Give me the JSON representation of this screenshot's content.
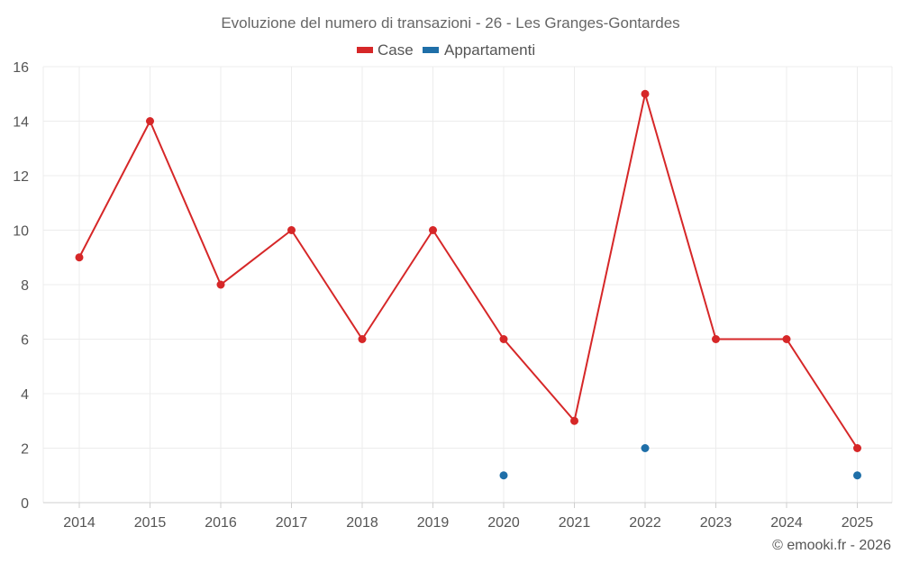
{
  "chart_data": {
    "type": "line",
    "title": "Evoluzione del numero di transazioni - 26 - Les Granges-Gontardes",
    "categories": [
      "2014",
      "2015",
      "2016",
      "2017",
      "2018",
      "2019",
      "2020",
      "2021",
      "2022",
      "2023",
      "2024",
      "2025"
    ],
    "series": [
      {
        "name": "Case",
        "color": "#d62728",
        "values": [
          9,
          14,
          8,
          10,
          6,
          10,
          6,
          3,
          15,
          6,
          6,
          2
        ]
      },
      {
        "name": "Appartamenti",
        "color": "#1f6fa8",
        "values": [
          null,
          null,
          null,
          null,
          null,
          null,
          1,
          null,
          2,
          null,
          null,
          1
        ]
      }
    ],
    "ylim": [
      0,
      16
    ],
    "yticks": [
      "0",
      "2",
      "4",
      "6",
      "8",
      "10",
      "12",
      "14",
      "16"
    ],
    "xlabel": "",
    "ylabel": "",
    "grid": true,
    "legend_position": "top-center"
  },
  "credit": "© emooki.fr - 2026"
}
